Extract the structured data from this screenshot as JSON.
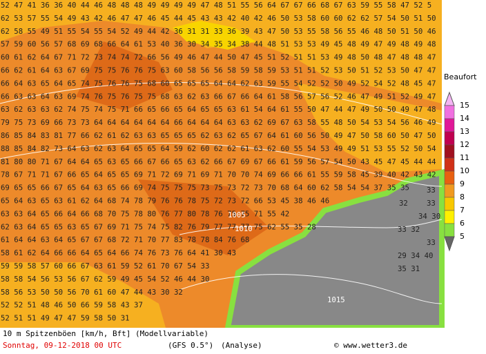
{
  "map": {
    "rows": [
      "52 47 41 36 36 40 44 46 48 48 48 49 49 49 49 47 48 51 55 56 64 67 67 66 68 67 63 59 55 58 47 52 5",
      "62 53 57 55 54 49 43 42 46 47 47 46 45 44 45 43 43 42 40 42 46 50 53 58 60 60 62 62 57 54 50 51 50",
      "62 58 55 49 51 55 54 55 54 52 49 44 42 36 31 31 33 36 39 43 47 50 53 55 58 56 55 46 48 50 51 50 46",
      "57 59 60 56 57 68 69 68 66 64 61 53 40 36 30 34 35 34 38 44 48 51 53 53 49 45 48 49 47 49 48 49 48",
      "60 61 62 64 67 71 72 73 74 74 72 66 56 49 46 47 44 50 47 45 51 52 51 51 53 49 48 50 48 47 48 48 47",
      "66 62 61 64 63 67 69 75 75 76 76 75 63 60 58 56 56 58 59 58 59 53 51 51 52 53 50 51 52 53 50 47 47",
      "66 64 63 65 64 65 74 75 76 76 75 68 60 65 65 65 64 64 62 63 59 55 54 52 52 50 49 52 54 52 48 45 47",
      "66 63 63 64 63 69 74 76 75 76 75 75 68 63 62 63 66 67 66 64 61 58 56 57 56 52 46 47 49 51 52 49 47",
      "63 62 63 63 62 74 75 74 75 71 66 65 66 65 64 65 65 63 61 54 64 61 55 50 47 44 47 49 50 50 49 47 48",
      "79 75 73 69 66 73 73 64 64 64 64 64 64 66 64 64 64 63 63 62 69 67 63 58 55 48 50 54 53 54 56 46 49",
      "86 85 84 83 81 77 66 62 61 62 63 63 65 65 65 62 63 62 65 67 64 61 60 56 50 49 47 50 58 60 50 47 50",
      "88 85 84 82 73 64 63 62 63 64 65 65 64 59 62 60 62 62 61 63 62 60 55 54 53 49 49 51 53 55 52 50 54",
      "81 80 80 71 67 64 64 65 63 65 66 67 66 65 63 62 66 67 69 67 66 61 59 56 57 54 50 43 45 47 45 44 44",
      "78 67 71 71 67 66 65 64 65 65 69 71 72 69 71 69 71 70 70 74 69 66 66 61 55 59 58 45 39 40 42 43 42",
      "69 65 65 66 67 65 64 63 65 66 69 74 75 75 75 73 75 73 72 73 70 68 64 60 62 58 54 54 37 35 35",
      "65 64 63 65 63 61 62 64 68 74 78 79 76 76 78 75 72 73 72 66 53 45 38 46 46",
      "63 63 64 65 66 64 66 68 70 75 78 80 76 77 80 78 76 75 75 71 55 42",
      "62 63 64 65 65 63 65 67 69 71 75 74 75 82 76 79 77 77 77 75 62 55 35 28",
      "61 64 64 63 64 65 67 67 68 72 71 70 77 83 78 78 84 76 68",
      "58 61 62 64 66 66 64 65 64 66 74 76 73 76 64 41 30 43",
      "59 59 58 57 60 66 67 63 61 59 52 61 70 67 54 33",
      "58 58 54 56 53 56 67 62 59 49 45 54 52 46 44 30",
      "58 56 53 50 50 56 70 61 60 47 44 43 30 32",
      "52 52 51 48 46 50 66 59 58 43 37",
      "52 51 51 49 47 47 59 58 50 31"
    ],
    "sea_labels": [
      "33",
      "32",
      "33",
      "34 30",
      "33 32",
      "33",
      "29 34 40",
      "35 31"
    ],
    "isobars": [
      "1015",
      "1010",
      "1005"
    ]
  },
  "legend": {
    "title": "Beaufort",
    "levels": [
      15,
      14,
      13,
      12,
      11,
      10,
      9,
      8,
      7,
      6,
      5
    ],
    "colors": [
      "#f4b4f4",
      "#f070e0",
      "#e01898",
      "#c00050",
      "#a01020",
      "#d03018",
      "#e86010",
      "#f09a20",
      "#f8c800",
      "#fff000",
      "#88e040"
    ]
  },
  "footer": {
    "title": "10 m Spitzenböen [km/h, Bft] (Modellvariable)",
    "date": "Sonntag, 09-12-2018  00 UTC",
    "model": "(GFS 0.5°)",
    "run": "(Analyse)",
    "credit": "© www.wetter3.de"
  }
}
